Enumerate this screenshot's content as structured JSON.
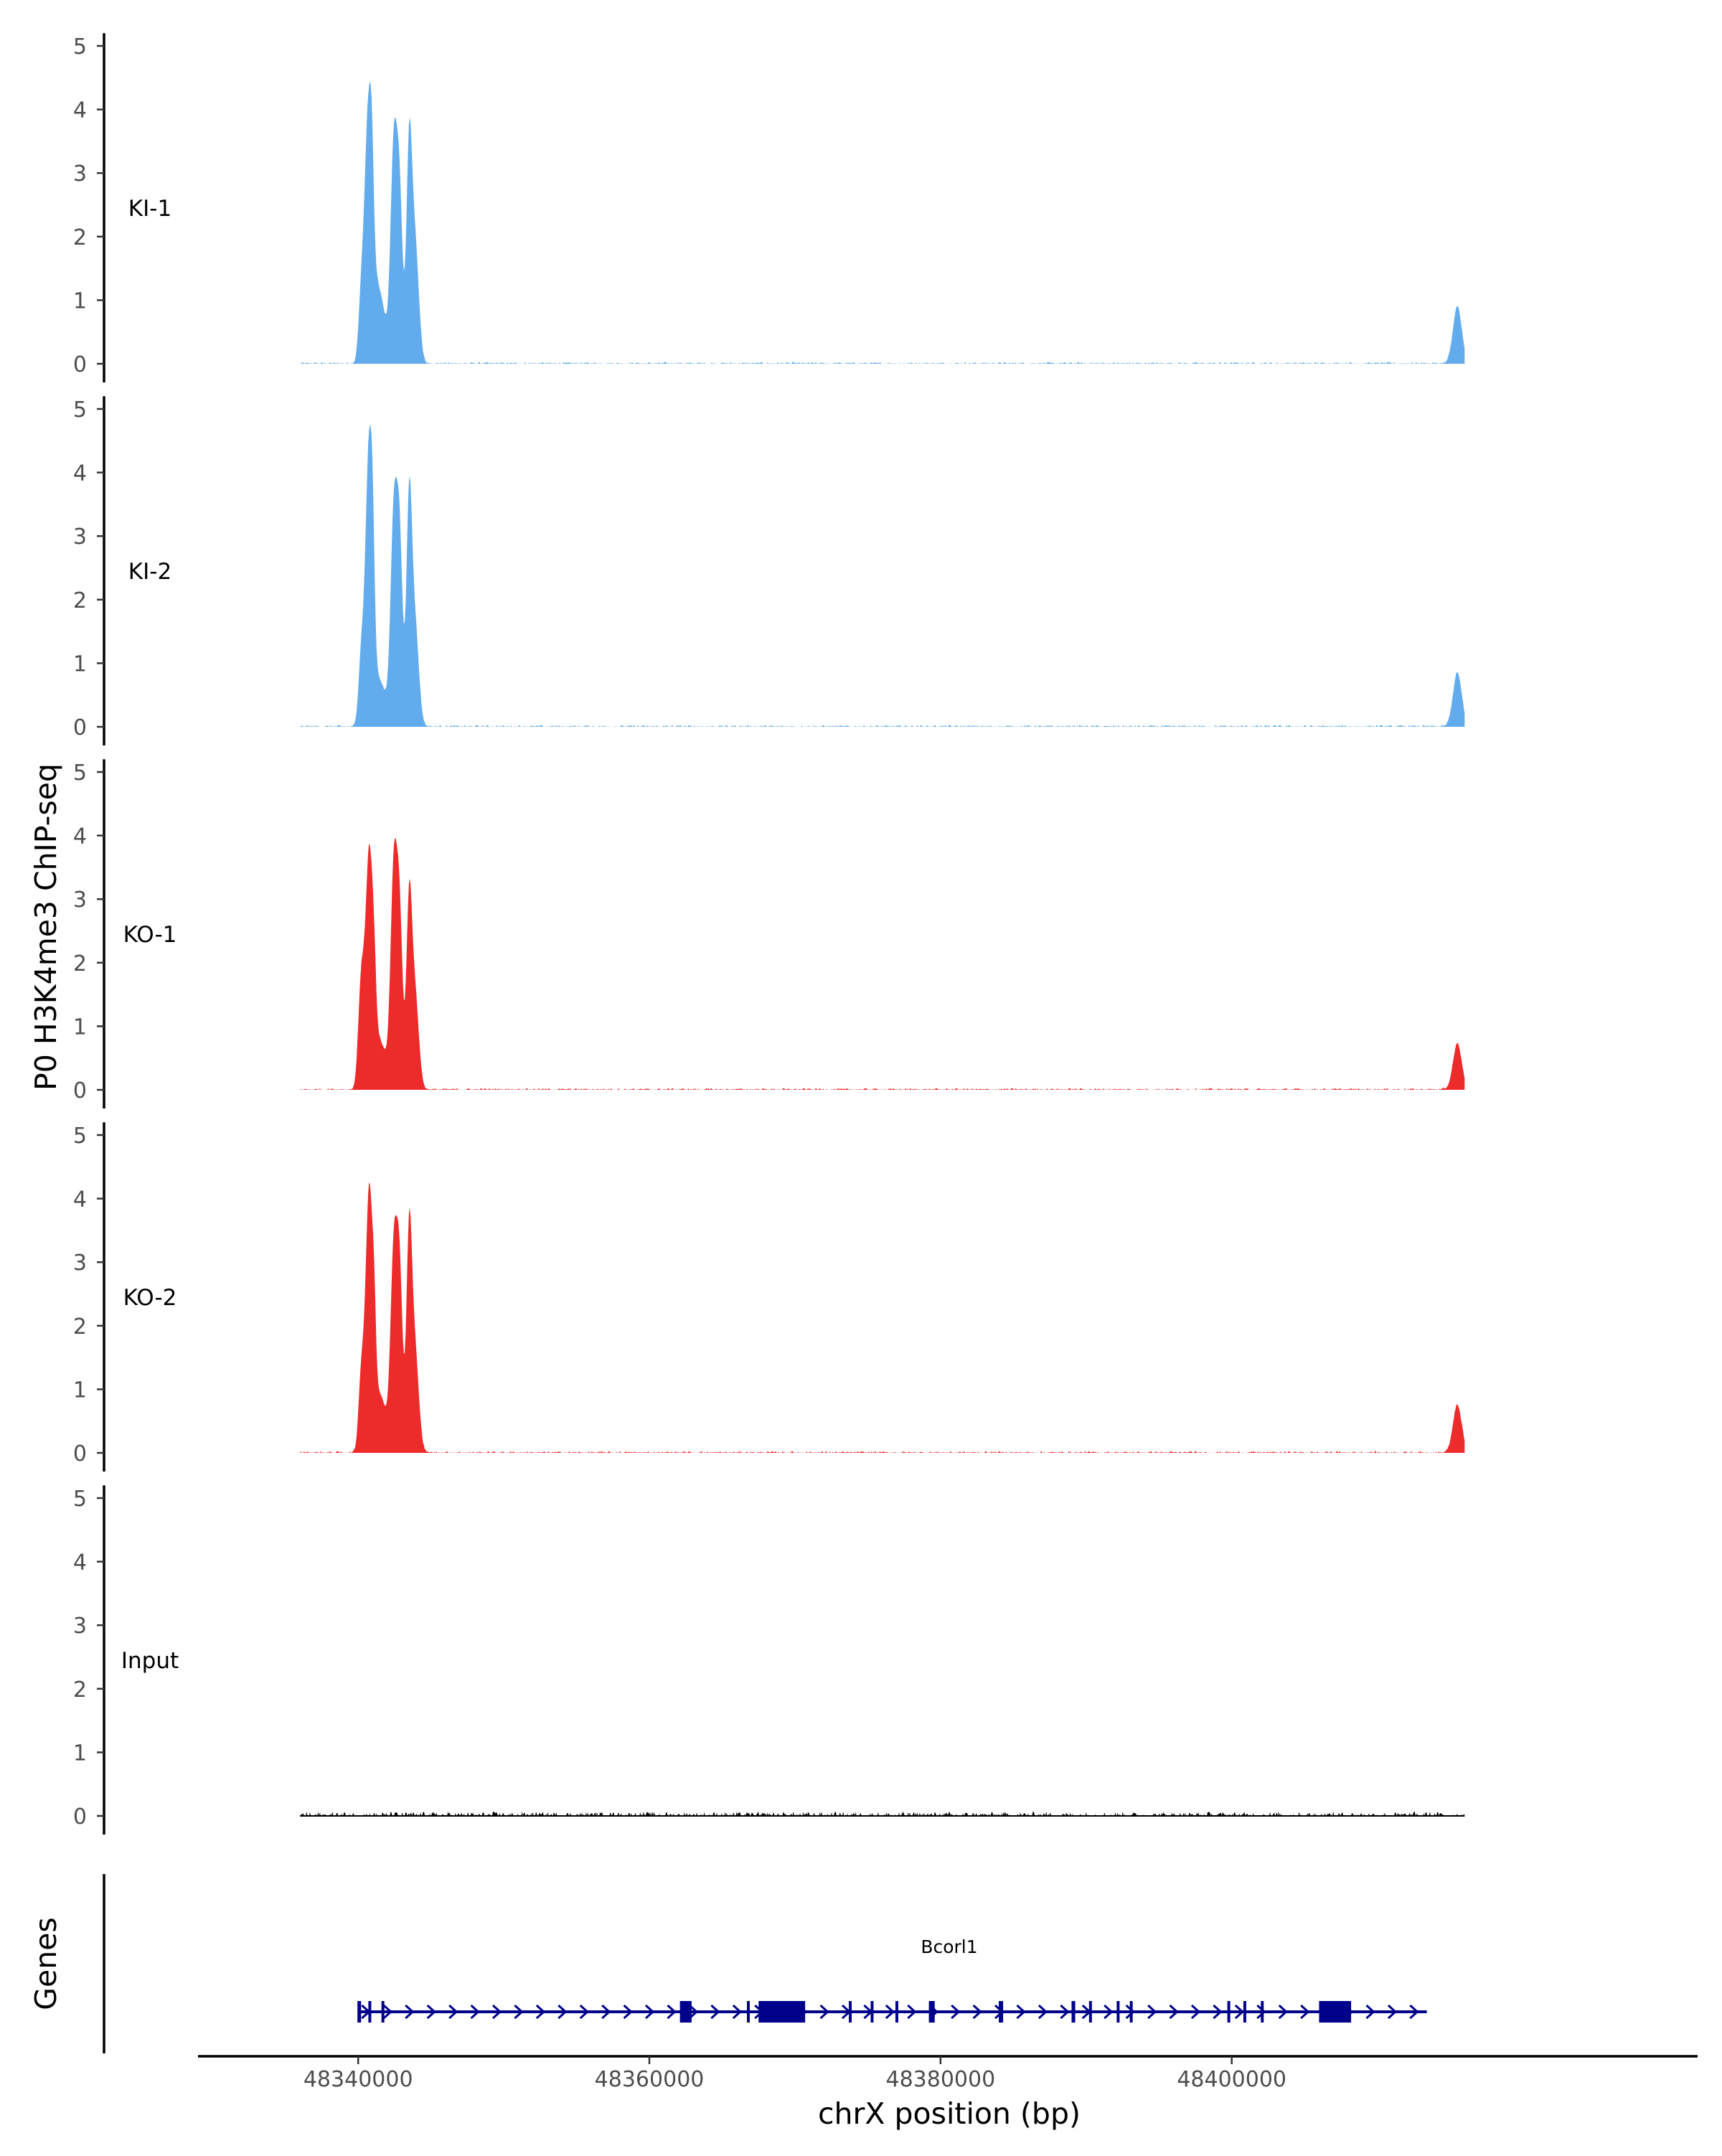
{
  "chart_data": {
    "type": "area",
    "ylabel": "P0 H3K4me3 ChIP-seq",
    "xlabel": "chrX position (bp)",
    "xlim": [
      48329000,
      48432000
    ],
    "signal_range_bp": [
      48336000,
      48416000
    ],
    "ylim": [
      0,
      5.2
    ],
    "y_ticks": [
      "0",
      "1",
      "2",
      "3",
      "4",
      "5"
    ],
    "x_ticks": [
      {
        "value": 48340000,
        "label": "48340000"
      },
      {
        "value": 48360000,
        "label": "48360000"
      },
      {
        "value": 48380000,
        "label": "48380000"
      },
      {
        "value": 48400000,
        "label": "48400000"
      }
    ],
    "colors": {
      "KI": "#62acee",
      "KO": "#ee2b2b",
      "Input": "#000000",
      "gene": "#00008b"
    },
    "tracks": [
      {
        "name": "KI-1",
        "label": "KI-1",
        "color": "#62acee",
        "noise": 0.03,
        "peaks": [
          {
            "x": 48340200,
            "sigma": 180,
            "h": 0.85
          },
          {
            "x": 48340700,
            "sigma": 260,
            "h": 3.8
          },
          {
            "x": 48340950,
            "sigma": 120,
            "h": 0.9
          },
          {
            "x": 48341400,
            "sigma": 450,
            "h": 1.15
          },
          {
            "x": 48342450,
            "sigma": 220,
            "h": 3.35
          },
          {
            "x": 48342850,
            "sigma": 200,
            "h": 2.5
          },
          {
            "x": 48343500,
            "sigma": 190,
            "h": 3.2
          },
          {
            "x": 48343900,
            "sigma": 260,
            "h": 1.9
          },
          {
            "x": 48415500,
            "sigma": 300,
            "h": 0.9
          }
        ]
      },
      {
        "name": "KI-2",
        "label": "KI-2",
        "color": "#62acee",
        "noise": 0.03,
        "peaks": [
          {
            "x": 48340200,
            "sigma": 180,
            "h": 1.0
          },
          {
            "x": 48340750,
            "sigma": 250,
            "h": 4.4
          },
          {
            "x": 48341000,
            "sigma": 120,
            "h": 1.0
          },
          {
            "x": 48341500,
            "sigma": 420,
            "h": 0.7
          },
          {
            "x": 48342450,
            "sigma": 220,
            "h": 3.3
          },
          {
            "x": 48342850,
            "sigma": 200,
            "h": 2.8
          },
          {
            "x": 48343500,
            "sigma": 190,
            "h": 3.4
          },
          {
            "x": 48343900,
            "sigma": 260,
            "h": 1.6
          },
          {
            "x": 48415500,
            "sigma": 300,
            "h": 0.85
          }
        ]
      },
      {
        "name": "KO-1",
        "label": "KO-1",
        "color": "#ee2b2b",
        "noise": 0.03,
        "peaks": [
          {
            "x": 48340200,
            "sigma": 200,
            "h": 1.6
          },
          {
            "x": 48340750,
            "sigma": 250,
            "h": 3.6
          },
          {
            "x": 48341100,
            "sigma": 140,
            "h": 0.8
          },
          {
            "x": 48341500,
            "sigma": 450,
            "h": 0.75
          },
          {
            "x": 48342450,
            "sigma": 220,
            "h": 3.4
          },
          {
            "x": 48342850,
            "sigma": 200,
            "h": 2.6
          },
          {
            "x": 48343500,
            "sigma": 190,
            "h": 2.8
          },
          {
            "x": 48343900,
            "sigma": 260,
            "h": 1.5
          },
          {
            "x": 48415500,
            "sigma": 300,
            "h": 0.72
          }
        ]
      },
      {
        "name": "KO-2",
        "label": "KO-2",
        "color": "#ee2b2b",
        "noise": 0.03,
        "peaks": [
          {
            "x": 48340200,
            "sigma": 180,
            "h": 1.1
          },
          {
            "x": 48340750,
            "sigma": 250,
            "h": 4.0
          },
          {
            "x": 48341100,
            "sigma": 120,
            "h": 0.9
          },
          {
            "x": 48341500,
            "sigma": 450,
            "h": 0.9
          },
          {
            "x": 48342450,
            "sigma": 220,
            "h": 3.1
          },
          {
            "x": 48342850,
            "sigma": 200,
            "h": 2.7
          },
          {
            "x": 48343500,
            "sigma": 190,
            "h": 3.3
          },
          {
            "x": 48343900,
            "sigma": 260,
            "h": 1.6
          },
          {
            "x": 48415500,
            "sigma": 300,
            "h": 0.75
          }
        ]
      },
      {
        "name": "Input",
        "label": "Input",
        "color": "#000000",
        "noise": 0.07,
        "peaks": []
      }
    ],
    "genes_track": {
      "label": "Genes",
      "gene_name": "Bcorl1",
      "start": 48340000,
      "end": 48413400,
      "strand": "+",
      "exons": [
        {
          "start": 48339950,
          "end": 48340200
        },
        {
          "start": 48340700,
          "end": 48340850
        },
        {
          "start": 48341600,
          "end": 48341700
        },
        {
          "start": 48362100,
          "end": 48362900
        },
        {
          "start": 48366700,
          "end": 48366850
        },
        {
          "start": 48367500,
          "end": 48370700
        },
        {
          "start": 48373700,
          "end": 48373850
        },
        {
          "start": 48375200,
          "end": 48375350
        },
        {
          "start": 48376900,
          "end": 48377050
        },
        {
          "start": 48379200,
          "end": 48379600
        },
        {
          "start": 48384000,
          "end": 48384300
        },
        {
          "start": 48389000,
          "end": 48389250
        },
        {
          "start": 48390200,
          "end": 48390350
        },
        {
          "start": 48392100,
          "end": 48392250
        },
        {
          "start": 48393000,
          "end": 48393150
        },
        {
          "start": 48399700,
          "end": 48399850
        },
        {
          "start": 48400800,
          "end": 48400950
        },
        {
          "start": 48402000,
          "end": 48402150
        },
        {
          "start": 48406000,
          "end": 48408200
        }
      ]
    }
  }
}
